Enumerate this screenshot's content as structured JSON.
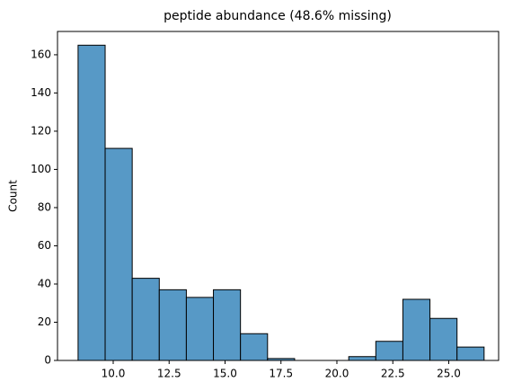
{
  "chart_data": {
    "type": "histogram",
    "title": "peptide abundance (48.6% missing)",
    "ylabel": "Count",
    "bins": [
      8.43,
      9.64,
      10.85,
      12.06,
      13.27,
      14.48,
      15.69,
      16.9,
      18.11,
      19.32,
      20.53,
      21.74,
      22.95,
      24.16,
      25.37,
      26.58
    ],
    "values": [
      165,
      111,
      43,
      37,
      33,
      37,
      14,
      1,
      0,
      0,
      2,
      10,
      32,
      22,
      7
    ],
    "color": "#5799c6",
    "edgecolor": "#000000",
    "xlim": [
      7.51,
      27.23
    ],
    "xticks": [
      {
        "value": 10,
        "label": "10.0"
      },
      12.5,
      {
        "value": 15,
        "label": "15.0"
      },
      17.5,
      {
        "value": 20,
        "label": "20.0"
      },
      22.5,
      {
        "value": 25,
        "label": "25.0"
      }
    ],
    "ylim": [
      0,
      172.2
    ],
    "yticks": [
      0,
      20,
      40,
      60,
      80,
      100,
      120,
      140,
      160
    ],
    "grid": false
  }
}
